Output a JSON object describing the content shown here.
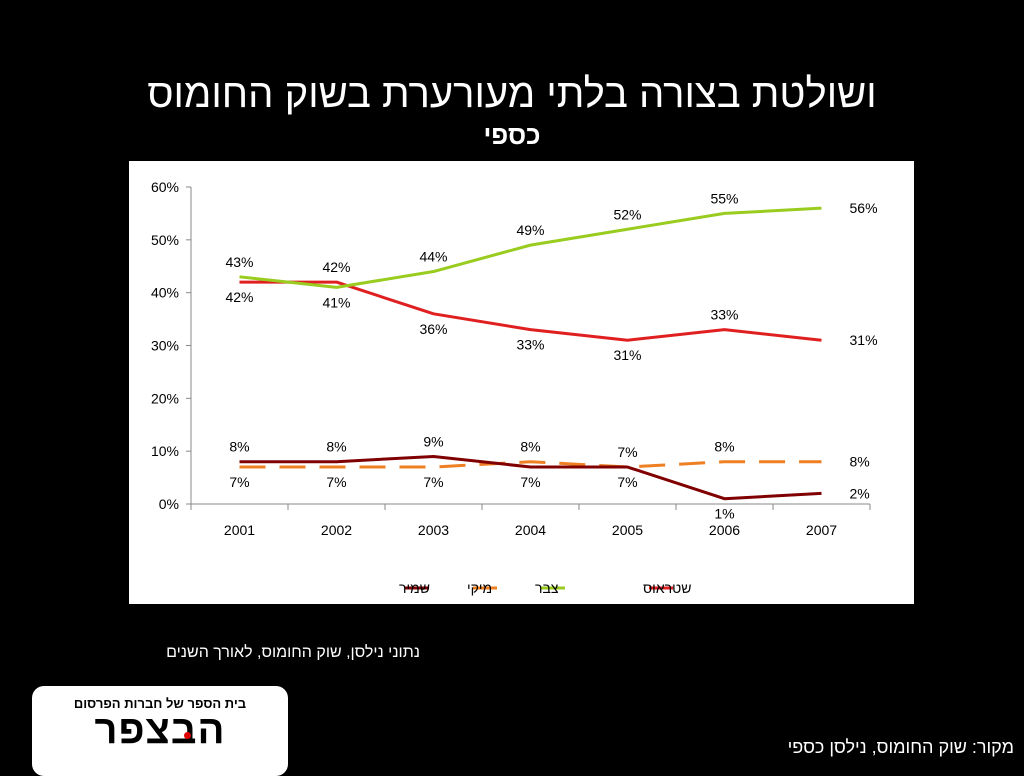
{
  "slide": {
    "title": "ושולטת בצורה בלתי מעורערת בשוק החומוס",
    "subtitle": "כספי",
    "caption": "נתוני נילסן, שוק החומוס, לאורך השנים",
    "source": "מקור: שוק החומוס, נילסן כספי"
  },
  "logo": {
    "top_text": "בית הספר של חברות הפרסום",
    "main_text": "הבצפר",
    "accent_color": "#e00000"
  },
  "chart_data": {
    "type": "line",
    "categories": [
      "2001",
      "2002",
      "2003",
      "2004",
      "2005",
      "2006",
      "2007"
    ],
    "ylim": [
      0,
      0.6
    ],
    "yticks": [
      "0%",
      "10%",
      "20%",
      "30%",
      "40%",
      "50%",
      "60%"
    ],
    "grid": false,
    "legend_position": "bottom",
    "series": [
      {
        "name": "שטראוס",
        "color": "#e02020",
        "dash": false,
        "values": [
          0.42,
          0.42,
          0.36,
          0.33,
          0.31,
          0.33,
          0.31
        ],
        "labels": [
          "42%",
          "42%",
          "36%",
          "33%",
          "31%",
          "33%",
          "31%"
        ]
      },
      {
        "name": "צבר",
        "color": "#99cc1f",
        "dash": false,
        "values": [
          0.43,
          0.41,
          0.44,
          0.49,
          0.52,
          0.55,
          0.56
        ],
        "labels": [
          "43%",
          "41%",
          "44%",
          "49%",
          "52%",
          "55%",
          "56%"
        ]
      },
      {
        "name": "מיקי",
        "color": "#ee7f22",
        "dash": true,
        "values": [
          0.07,
          0.07,
          0.07,
          0.08,
          0.07,
          0.08,
          0.08
        ],
        "labels": [
          "7%",
          "7%",
          "7%",
          "8%",
          "7%",
          "8%",
          "8%"
        ]
      },
      {
        "name": "שמיר",
        "color": "#800000",
        "dash": false,
        "values": [
          0.08,
          0.08,
          0.09,
          0.07,
          0.07,
          0.01,
          0.02
        ],
        "labels": [
          "8%",
          "8%",
          "9%",
          "7%",
          "7%",
          "1%",
          "2%"
        ]
      }
    ]
  }
}
